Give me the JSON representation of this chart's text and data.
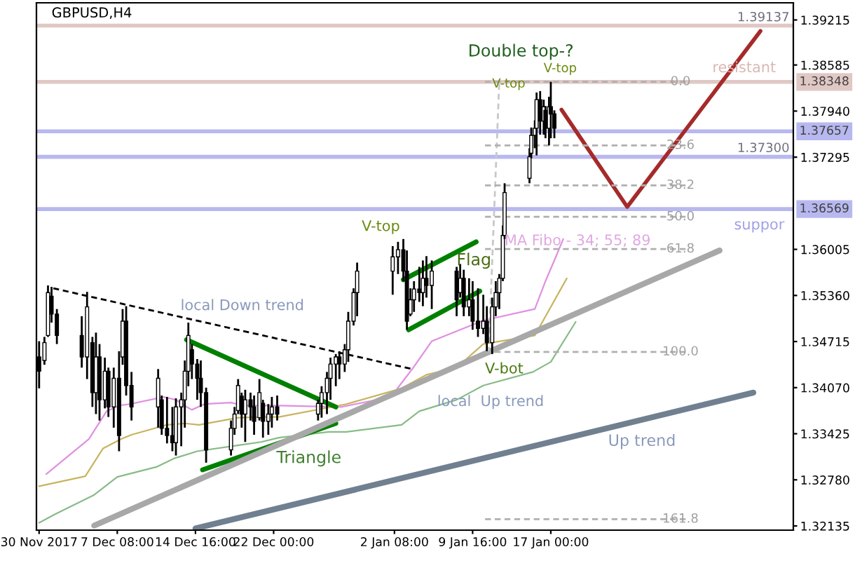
{
  "chart_data": {
    "type": "candlestick",
    "title": "GBPUSD,H4",
    "x": [
      "2017-11-30T00:00",
      "2017-11-30T12:00",
      "2017-11-30T20:00",
      "2017-12-01T04:00",
      "2017-12-01T16:00",
      "2017-12-04T00:00",
      "2017-12-04T12:00",
      "2017-12-05T00:00",
      "2017-12-05T08:00",
      "2017-12-05T16:00",
      "2017-12-06T04:00",
      "2017-12-06T12:00",
      "2017-12-07T00:00",
      "2017-12-07T12:00",
      "2017-12-07T20:00",
      "2017-12-08T04:00",
      "2017-12-08T16:00",
      "2017-12-11T04:00",
      "2017-12-11T12:00",
      "2017-12-12T00:00",
      "2017-12-12T12:00",
      "2017-12-12T20:00",
      "2017-12-13T08:00",
      "2017-12-13T16:00",
      "2017-12-14T00:00",
      "2017-12-14T08:00",
      "2017-12-14T20:00",
      "2017-12-15T04:00",
      "2017-12-15T16:00",
      "2017-12-18T00:00",
      "2017-12-18T08:00",
      "2017-12-18T16:00",
      "2017-12-19T00:00",
      "2017-12-19T08:00",
      "2017-12-19T20:00",
      "2017-12-20T04:00",
      "2017-12-20T16:00",
      "2017-12-21T00:00",
      "2017-12-21T12:00",
      "2017-12-21T20:00",
      "2017-12-22T08:00",
      "2017-12-26T04:00",
      "2017-12-26T12:00",
      "2017-12-27T00:00",
      "2017-12-27T08:00",
      "2017-12-27T20:00",
      "2017-12-28T04:00",
      "2017-12-28T16:00",
      "2017-12-29T00:00",
      "2017-12-29T12:00",
      "2017-12-29T20:00",
      "2018-01-02T04:00",
      "2018-01-02T16:00",
      "2018-01-03T04:00",
      "2018-01-03T12:00",
      "2018-01-03T20:00",
      "2018-01-04T04:00",
      "2018-01-04T16:00",
      "2018-01-05T00:00",
      "2018-01-05T08:00",
      "2018-01-05T20:00",
      "2018-01-08T04:00",
      "2018-01-08T12:00",
      "2018-01-08T20:00",
      "2018-01-09T08:00",
      "2018-01-09T16:00",
      "2018-01-10T04:00",
      "2018-01-10T16:00",
      "2018-01-11T00:00",
      "2018-01-11T12:00",
      "2018-01-11T20:00",
      "2018-01-12T04:00",
      "2018-01-12T12:00",
      "2018-01-12T16:00",
      "2018-01-15T00:00",
      "2018-01-15T04:00",
      "2018-01-15T12:00",
      "2018-01-15T16:00",
      "2018-01-16T00:00",
      "2018-01-16T08:00",
      "2018-01-16T12:00",
      "2018-01-16T20:00",
      "2018-01-17T00:00",
      "2018-01-17T08:00"
    ],
    "ohlc": [
      [
        1.345,
        1.3472,
        1.3406,
        1.343
      ],
      [
        1.3445,
        1.3478,
        1.3439,
        1.347
      ],
      [
        1.348,
        1.355,
        1.3478,
        1.354
      ],
      [
        1.3535,
        1.3548,
        1.3498,
        1.351
      ],
      [
        1.351,
        1.3517,
        1.3468,
        1.348
      ],
      [
        1.348,
        1.3507,
        1.3435,
        1.345
      ],
      [
        1.345,
        1.3541,
        1.3419,
        1.352
      ],
      [
        1.347,
        1.3478,
        1.338,
        1.34
      ],
      [
        1.34,
        1.3484,
        1.337,
        1.345
      ],
      [
        1.345,
        1.3468,
        1.3361,
        1.339
      ],
      [
        1.339,
        1.3449,
        1.3378,
        1.343
      ],
      [
        1.343,
        1.3435,
        1.3366,
        1.338
      ],
      [
        1.338,
        1.3435,
        1.3351,
        1.342
      ],
      [
        1.342,
        1.3458,
        1.3318,
        1.334
      ],
      [
        1.345,
        1.3517,
        1.3439,
        1.35
      ],
      [
        1.35,
        1.3521,
        1.3396,
        1.341
      ],
      [
        1.341,
        1.3429,
        1.3361,
        1.338
      ],
      [
        1.338,
        1.3433,
        1.3351,
        1.342
      ],
      [
        1.339,
        1.3396,
        1.3341,
        1.335
      ],
      [
        1.335,
        1.3394,
        1.3329,
        1.334
      ],
      [
        1.334,
        1.338,
        1.3318,
        1.333
      ],
      [
        1.333,
        1.3392,
        1.3312,
        1.338
      ],
      [
        1.338,
        1.34,
        1.3325,
        1.339
      ],
      [
        1.339,
        1.3445,
        1.3351,
        1.343
      ],
      [
        1.343,
        1.3498,
        1.3409,
        1.348
      ],
      [
        1.346,
        1.3468,
        1.3419,
        1.344
      ],
      [
        1.344,
        1.3447,
        1.339,
        1.342
      ],
      [
        1.342,
        1.3445,
        1.338,
        1.34
      ],
      [
        1.34,
        1.3407,
        1.3302,
        1.332
      ],
      [
        1.332,
        1.3361,
        1.3312,
        1.335
      ],
      [
        1.335,
        1.338,
        1.3341,
        1.337
      ],
      [
        1.3375,
        1.3419,
        1.337,
        1.341
      ],
      [
        1.3395,
        1.34,
        1.3351,
        1.337
      ],
      [
        1.337,
        1.3404,
        1.3331,
        1.339
      ],
      [
        1.339,
        1.34,
        1.3361,
        1.338
      ],
      [
        1.338,
        1.3396,
        1.3341,
        1.336
      ],
      [
        1.3365,
        1.3419,
        1.3361,
        1.34
      ],
      [
        1.3385,
        1.339,
        1.3337,
        1.336
      ],
      [
        1.336,
        1.3384,
        1.3341,
        1.337
      ],
      [
        1.337,
        1.3394,
        1.3351,
        1.338
      ],
      [
        1.338,
        1.3396,
        1.3361,
        1.337
      ],
      [
        1.337,
        1.339,
        1.3361,
        1.3385
      ],
      [
        1.3385,
        1.3409,
        1.3365,
        1.34
      ],
      [
        1.34,
        1.3429,
        1.337,
        1.342
      ],
      [
        1.342,
        1.3449,
        1.339,
        1.344
      ],
      [
        1.344,
        1.3454,
        1.3409,
        1.345
      ],
      [
        1.345,
        1.3458,
        1.3419,
        1.344
      ],
      [
        1.344,
        1.3468,
        1.3429,
        1.346
      ],
      [
        1.346,
        1.3513,
        1.3443,
        1.35
      ],
      [
        1.35,
        1.3546,
        1.3494,
        1.354
      ],
      [
        1.354,
        1.3582,
        1.3507,
        1.357
      ],
      [
        1.357,
        1.3605,
        1.3537,
        1.359
      ],
      [
        1.359,
        1.3611,
        1.3566,
        1.36
      ],
      [
        1.36,
        1.3615,
        1.3556,
        1.357
      ],
      [
        1.357,
        1.3599,
        1.3488,
        1.35
      ],
      [
        1.351,
        1.3546,
        1.3507,
        1.353
      ],
      [
        1.353,
        1.3556,
        1.3513,
        1.3545
      ],
      [
        1.3545,
        1.3576,
        1.3527,
        1.354
      ],
      [
        1.354,
        1.3585,
        1.3521,
        1.356
      ],
      [
        1.356,
        1.3591,
        1.3533,
        1.355
      ],
      [
        1.355,
        1.3585,
        1.3517,
        1.357
      ],
      [
        1.357,
        1.3576,
        1.3507,
        1.353
      ],
      [
        1.354,
        1.358,
        1.3533,
        1.356
      ],
      [
        1.356,
        1.3572,
        1.3507,
        1.352
      ],
      [
        1.352,
        1.356,
        1.3507,
        1.353
      ],
      [
        1.353,
        1.3556,
        1.3488,
        1.35
      ],
      [
        1.35,
        1.3546,
        1.3478,
        1.349
      ],
      [
        1.349,
        1.3537,
        1.3482,
        1.35
      ],
      [
        1.35,
        1.3521,
        1.3458,
        1.347
      ],
      [
        1.347,
        1.3533,
        1.3454,
        1.352
      ],
      [
        1.352,
        1.3556,
        1.3507,
        1.354
      ],
      [
        1.354,
        1.3566,
        1.3517,
        1.356
      ],
      [
        1.356,
        1.3634,
        1.3556,
        1.362
      ],
      [
        1.362,
        1.3693,
        1.3615,
        1.368
      ],
      [
        1.37,
        1.3742,
        1.3693,
        1.373
      ],
      [
        1.3735,
        1.3771,
        1.3728,
        1.376
      ],
      [
        1.376,
        1.3781,
        1.3742,
        1.377
      ],
      [
        1.377,
        1.382,
        1.3732,
        1.381
      ],
      [
        1.381,
        1.3822,
        1.3761,
        1.378
      ],
      [
        1.378,
        1.381,
        1.3761,
        1.38
      ],
      [
        1.3795,
        1.3801,
        1.3756,
        1.377
      ],
      [
        1.377,
        1.3814,
        1.3746,
        1.38
      ],
      [
        1.38,
        1.3835,
        1.3756,
        1.379
      ],
      [
        1.379,
        1.3795,
        1.3756,
        1.377
      ]
    ],
    "color": "#000000",
    "series": [
      {
        "type": "line",
        "color": "#e090e0",
        "x": [
          "2017-11-30T16:00",
          "2017-12-04T16:00",
          "2017-12-06T08:00",
          "2017-12-07T12:00",
          "2017-12-08T12:00",
          "2017-12-11T16:00",
          "2017-12-12T20:00",
          "2017-12-13T20:00",
          "2017-12-14T08:00",
          "2017-12-15T12:00",
          "2017-12-18T00:00",
          "2017-12-19T04:00",
          "2017-12-20T20:00",
          "2017-12-22T12:00",
          "2017-12-28T08:00",
          "2018-01-02T00:00",
          "2018-01-04T00:00",
          "2018-01-05T20:00",
          "2018-01-10T16:00",
          "2018-01-15T12:00",
          "2018-01-16T12:00",
          "2018-01-17T12:00",
          "2018-01-18T04:00"
        ],
        "values": [
          1.3286,
          1.3335,
          1.3374,
          1.3382,
          1.3384,
          1.3394,
          1.339,
          1.338,
          1.3376,
          1.3384,
          1.3386,
          1.3382,
          1.3382,
          1.3382,
          1.338,
          1.3394,
          1.3433,
          1.3472,
          1.3501,
          1.3517,
          1.3556,
          1.3591,
          1.3615
        ]
      },
      {
        "type": "line",
        "color": "#c8b460",
        "x": [
          "2017-11-30T00:00",
          "2017-12-04T08:00",
          "2017-12-06T00:00",
          "2017-12-07T16:00",
          "2017-12-08T16:00",
          "2017-12-12T00:00",
          "2017-12-13T16:00",
          "2017-12-15T00:00",
          "2017-12-18T16:00",
          "2017-12-20T20:00",
          "2017-12-22T12:00",
          "2017-12-28T20:00",
          "2018-01-03T00:00",
          "2018-01-05T08:00",
          "2018-01-08T04:00",
          "2018-01-10T16:00",
          "2018-01-15T12:00",
          "2018-01-16T16:00",
          "2018-01-18T12:00"
        ],
        "values": [
          1.3269,
          1.3283,
          1.3322,
          1.3335,
          1.3341,
          1.3355,
          1.3357,
          1.3355,
          1.3365,
          1.3366,
          1.3366,
          1.3384,
          1.3406,
          1.3425,
          1.3435,
          1.3468,
          1.348,
          1.3511,
          1.356
        ]
      },
      {
        "type": "line",
        "color": "#88bb88",
        "x": [
          "2017-11-30T00:00",
          "2017-12-01T12:00",
          "2017-12-05T04:00",
          "2017-12-07T08:00",
          "2017-12-11T00:00",
          "2017-12-12T16:00",
          "2017-12-14T20:00",
          "2017-12-18T12:00",
          "2017-12-20T20:00",
          "2017-12-22T12:00",
          "2017-12-27T04:00",
          "2017-12-28T20:00",
          "2018-01-03T00:00",
          "2018-01-04T16:00",
          "2018-01-08T04:00",
          "2018-01-10T16:00",
          "2018-01-15T08:00",
          "2018-01-17T00:00",
          "2018-01-19T08:00"
        ],
        "values": [
          1.3218,
          1.323,
          1.3257,
          1.3282,
          1.3296,
          1.3308,
          1.3318,
          1.3326,
          1.3331,
          1.3337,
          1.3345,
          1.3345,
          1.3355,
          1.3374,
          1.339,
          1.341,
          1.3429,
          1.3443,
          1.3499
        ]
      },
      {
        "type": "line",
        "color": "#000000",
        "line_style": "dashed",
        "x": [
          "2017-12-01T08:00",
          "2018-01-04T00:00"
        ],
        "values": [
          1.3546,
          1.3433
        ]
      },
      {
        "type": "line",
        "color": "#008000",
        "x": [
          "2017-12-13T20:00",
          "2017-12-27T20:00"
        ],
        "values": [
          1.3474,
          1.338
        ]
      },
      {
        "type": "line",
        "color": "#008000",
        "x": [
          "2017-12-15T08:00",
          "2017-12-27T20:00"
        ],
        "values": [
          1.3292,
          1.3357
        ]
      },
      {
        "type": "line",
        "color": "#008000",
        "x": [
          "2018-01-03T04:00",
          "2018-01-10T00:00"
        ],
        "values": [
          1.3558,
          1.3611
        ]
      },
      {
        "type": "line",
        "color": "#008000",
        "x": [
          "2018-01-03T16:00",
          "2018-01-10T08:00"
        ],
        "values": [
          1.3488,
          1.3542
        ]
      },
      {
        "type": "line",
        "color": "#a8a8a8",
        "x": [
          "2017-12-05T04:00",
          "2018-02-01T20:00"
        ],
        "values": [
          1.3214,
          1.3599
        ]
      },
      {
        "type": "line",
        "color": "#708090",
        "x": [
          "2017-12-14T16:00",
          "2018-02-05T00:00"
        ],
        "values": [
          1.321,
          1.34
        ]
      },
      {
        "type": "line",
        "color": "#a52a2a",
        "x": [
          "2018-01-18T00:00",
          "2018-01-24T04:00",
          "2018-02-05T16:00"
        ],
        "values": [
          1.3796,
          1.366,
          1.3906
        ]
      },
      {
        "type": "line",
        "color": "#c8c8c8",
        "line_style": "dashed",
        "x": [
          "2018-01-11T04:00",
          "2018-01-12T04:00"
        ],
        "values": [
          1.3456,
          1.3836
        ]
      },
      {
        "type": "line",
        "color": "#b0b0b0",
        "line_style": "dashed",
        "x": [
          "2018-01-10T20:00",
          "2018-01-30T00:00"
        ],
        "values": [
          1.3835,
          1.3835
        ]
      },
      {
        "type": "line",
        "color": "#b0b0b0",
        "line_style": "dashed",
        "x": [
          "2018-01-10T20:00",
          "2018-01-30T00:00"
        ],
        "values": [
          1.3746,
          1.3746
        ]
      },
      {
        "type": "line",
        "color": "#b0b0b0",
        "line_style": "dashed",
        "x": [
          "2018-01-10T20:00",
          "2018-01-30T00:00"
        ],
        "values": [
          1.369,
          1.369
        ]
      },
      {
        "type": "line",
        "color": "#b0b0b0",
        "line_style": "dashed",
        "x": [
          "2018-01-10T20:00",
          "2018-01-30T00:00"
        ],
        "values": [
          1.3646,
          1.3646
        ]
      },
      {
        "type": "line",
        "color": "#b0b0b0",
        "line_style": "dashed",
        "x": [
          "2018-01-10T20:00",
          "2018-01-30T00:00"
        ],
        "values": [
          1.3601,
          1.3601
        ]
      },
      {
        "type": "line",
        "color": "#b0b0b0",
        "line_style": "dashed",
        "x": [
          "2018-01-10T20:00",
          "2018-01-30T00:00"
        ],
        "values": [
          1.3457,
          1.3457
        ]
      },
      {
        "type": "line",
        "color": "#b0b0b0",
        "line_style": "dashed",
        "x": [
          "2018-01-10T20:00",
          "2018-01-30T00:00"
        ],
        "values": [
          1.3223,
          1.3223
        ]
      }
    ],
    "ref_lines": [
      {
        "axis": "y",
        "value": 1.39137,
        "color": "#e0c8c4"
      },
      {
        "axis": "y",
        "value": 1.38348,
        "label": "1.38348",
        "color": "#e0c8c4"
      },
      {
        "axis": "y",
        "value": 1.37657,
        "label": "1.37657",
        "color": "#b8b8f0"
      },
      {
        "axis": "y",
        "value": 1.373,
        "color": "#b8b8f0"
      },
      {
        "axis": "y",
        "value": 1.36569,
        "label": "1.36569",
        "color": "#b8b8f0"
      }
    ],
    "annotations": [
      "Double top-?",
      "V-top",
      "V-top",
      "V-top",
      "Flag",
      "V-bot",
      "Triangle",
      "local Down trend",
      "local  Up trend",
      "Up trend",
      "MA Fibo - 34; 55; 89",
      "resistant",
      "suppor",
      "1.39137",
      "1.37300",
      {
        "text": "0.0",
        "x": "2018-01-29T04:00",
        "y": 1.3835
      },
      {
        "text": "23.6",
        "x": "2018-01-29T04:00",
        "y": 1.3746
      },
      {
        "text": "38.2",
        "x": "2018-01-29T04:00",
        "y": 1.369
      },
      {
        "text": "50.0",
        "x": "2018-01-29T04:00",
        "y": 1.3646
      },
      {
        "text": "61.8",
        "x": "2018-01-29T04:00",
        "y": 1.3601
      },
      {
        "text": "100.0",
        "x": "2018-01-29T04:00",
        "y": 1.3457
      },
      {
        "text": "161.8",
        "x": "2018-01-29T04:00",
        "y": 1.3223
      }
    ],
    "xlim": [
      "2017-11-29T18:00",
      "2018-02-08T18:00"
    ],
    "xticks": [
      {
        "value": "2017-11-30T00:00",
        "label": "30 Nov 2017"
      },
      {
        "value": "2017-12-07T08:00",
        "label": "7 Dec 08:00"
      },
      {
        "value": "2017-12-14T16:00",
        "label": "14 Dec 16:00"
      },
      {
        "value": "2017-12-22T00:00",
        "label": "22 Dec 00:00"
      },
      {
        "value": "2018-01-02T08:00",
        "label": "2 Jan 08:00"
      },
      {
        "value": "2018-01-09T16:00",
        "label": "9 Jan 16:00"
      },
      {
        "value": "2018-01-17T00:00",
        "label": "17 Jan 00:00"
      }
    ],
    "ylim": [
      1.32076,
      1.39455
    ],
    "yticks": [
      1.39215,
      1.38585,
      {
        "value": 1.3794,
        "label": "1.37940"
      },
      1.37295,
      1.36005,
      {
        "value": 1.3536,
        "label": "1.35360"
      },
      1.34715,
      {
        "value": 1.3407,
        "label": "1.34070"
      },
      1.33425,
      {
        "value": 1.3278,
        "label": "1.32780"
      },
      1.32135
    ],
    "grid": false,
    "legend": false
  }
}
